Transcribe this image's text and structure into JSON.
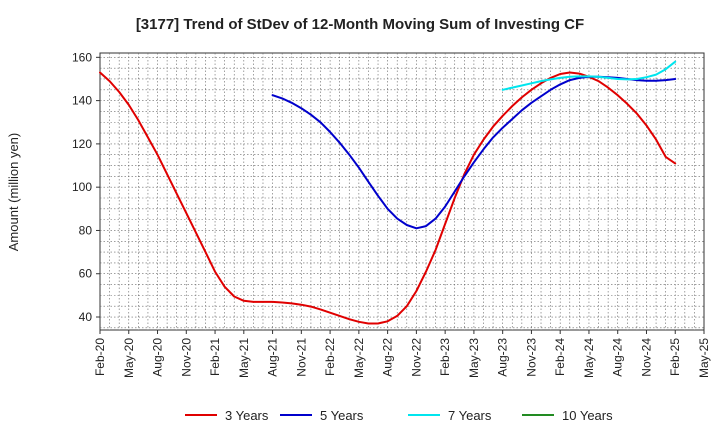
{
  "chart_data": {
    "type": "line",
    "title": "[3177]  Trend of StDev of 12-Month Moving Sum of Investing CF",
    "xlabel": "",
    "ylabel": "Amount (million yen)",
    "ylim": [
      34,
      162
    ],
    "yticks": [
      40,
      60,
      80,
      100,
      120,
      140,
      160
    ],
    "x_range": [
      "2020-02",
      "2025-05"
    ],
    "xtick_labels": [
      "Feb-20",
      "May-20",
      "Aug-20",
      "Nov-20",
      "Feb-21",
      "May-21",
      "Aug-21",
      "Nov-21",
      "Feb-22",
      "May-22",
      "Aug-22",
      "Nov-22",
      "Feb-23",
      "May-23",
      "Aug-23",
      "Nov-23",
      "Feb-24",
      "May-24",
      "Aug-24",
      "Nov-24",
      "Feb-25",
      "May-25"
    ],
    "grid": true,
    "legend_position": "bottom",
    "series": [
      {
        "name": "3 Years",
        "color": "#e00000",
        "points": [
          [
            "2020-02",
            153
          ],
          [
            "2020-03",
            149
          ],
          [
            "2020-04",
            144
          ],
          [
            "2020-05",
            138
          ],
          [
            "2020-06",
            131
          ],
          [
            "2020-07",
            123
          ],
          [
            "2020-08",
            115
          ],
          [
            "2020-09",
            106
          ],
          [
            "2020-10",
            97
          ],
          [
            "2020-11",
            88
          ],
          [
            "2020-12",
            79
          ],
          [
            "2021-01",
            70
          ],
          [
            "2021-02",
            61
          ],
          [
            "2021-03",
            54
          ],
          [
            "2021-04",
            49.5
          ],
          [
            "2021-05",
            47.5
          ],
          [
            "2021-06",
            47
          ],
          [
            "2021-07",
            47
          ],
          [
            "2021-08",
            47
          ],
          [
            "2021-09",
            46.7
          ],
          [
            "2021-10",
            46.3
          ],
          [
            "2021-11",
            45.7
          ],
          [
            "2021-12",
            44.8
          ],
          [
            "2022-01",
            43.5
          ],
          [
            "2022-02",
            42
          ],
          [
            "2022-03",
            40.5
          ],
          [
            "2022-04",
            39
          ],
          [
            "2022-05",
            37.8
          ],
          [
            "2022-06",
            37
          ],
          [
            "2022-07",
            37
          ],
          [
            "2022-08",
            38
          ],
          [
            "2022-09",
            40.5
          ],
          [
            "2022-10",
            45
          ],
          [
            "2022-11",
            52
          ],
          [
            "2022-12",
            61
          ],
          [
            "2023-01",
            71
          ],
          [
            "2023-02",
            83
          ],
          [
            "2023-03",
            95
          ],
          [
            "2023-04",
            106
          ],
          [
            "2023-05",
            115
          ],
          [
            "2023-06",
            122
          ],
          [
            "2023-07",
            128
          ],
          [
            "2023-08",
            133
          ],
          [
            "2023-09",
            137.5
          ],
          [
            "2023-10",
            141.5
          ],
          [
            "2023-11",
            145
          ],
          [
            "2023-12",
            148
          ],
          [
            "2024-01",
            150.5
          ],
          [
            "2024-02",
            152.3
          ],
          [
            "2024-03",
            153
          ],
          [
            "2024-04",
            152.5
          ],
          [
            "2024-05",
            151
          ],
          [
            "2024-06",
            149
          ],
          [
            "2024-07",
            146
          ],
          [
            "2024-08",
            142.5
          ],
          [
            "2024-09",
            138.5
          ],
          [
            "2024-10",
            134
          ],
          [
            "2024-11",
            128.5
          ],
          [
            "2024-12",
            122
          ],
          [
            "2025-01",
            114
          ],
          [
            "2025-02",
            111
          ]
        ]
      },
      {
        "name": "5 Years",
        "color": "#0000cc",
        "points": [
          [
            "2021-08",
            142.5
          ],
          [
            "2021-09",
            141
          ],
          [
            "2021-10",
            139
          ],
          [
            "2021-11",
            136.5
          ],
          [
            "2021-12",
            133.5
          ],
          [
            "2022-01",
            130
          ],
          [
            "2022-02",
            125.5
          ],
          [
            "2022-03",
            120.5
          ],
          [
            "2022-04",
            115
          ],
          [
            "2022-05",
            109
          ],
          [
            "2022-06",
            102.5
          ],
          [
            "2022-07",
            96
          ],
          [
            "2022-08",
            90
          ],
          [
            "2022-09",
            85.5
          ],
          [
            "2022-10",
            82.5
          ],
          [
            "2022-11",
            81
          ],
          [
            "2022-12",
            82
          ],
          [
            "2023-01",
            85.5
          ],
          [
            "2023-02",
            91
          ],
          [
            "2023-03",
            98
          ],
          [
            "2023-04",
            105
          ],
          [
            "2023-05",
            111.5
          ],
          [
            "2023-06",
            117.5
          ],
          [
            "2023-07",
            123
          ],
          [
            "2023-08",
            127.5
          ],
          [
            "2023-09",
            131.5
          ],
          [
            "2023-10",
            135.5
          ],
          [
            "2023-11",
            139
          ],
          [
            "2023-12",
            142
          ],
          [
            "2024-01",
            145
          ],
          [
            "2024-02",
            147.5
          ],
          [
            "2024-03",
            149.5
          ],
          [
            "2024-04",
            150.5
          ],
          [
            "2024-05",
            151
          ],
          [
            "2024-06",
            151
          ],
          [
            "2024-07",
            150.8
          ],
          [
            "2024-08",
            150.5
          ],
          [
            "2024-09",
            150
          ],
          [
            "2024-10",
            149.5
          ],
          [
            "2024-11",
            149.2
          ],
          [
            "2024-12",
            149.2
          ],
          [
            "2025-01",
            149.5
          ],
          [
            "2025-02",
            150
          ]
        ]
      },
      {
        "name": "7 Years",
        "color": "#00e5ee",
        "points": [
          [
            "2023-08",
            145
          ],
          [
            "2023-09",
            146
          ],
          [
            "2023-10",
            147
          ],
          [
            "2023-11",
            148
          ],
          [
            "2023-12",
            149
          ],
          [
            "2024-01",
            149.8
          ],
          [
            "2024-02",
            150.5
          ],
          [
            "2024-03",
            151
          ],
          [
            "2024-04",
            151.2
          ],
          [
            "2024-05",
            151.2
          ],
          [
            "2024-06",
            151
          ],
          [
            "2024-07",
            150.5
          ],
          [
            "2024-08",
            150
          ],
          [
            "2024-09",
            149.8
          ],
          [
            "2024-10",
            150
          ],
          [
            "2024-11",
            150.8
          ],
          [
            "2024-12",
            152
          ],
          [
            "2025-01",
            154.5
          ],
          [
            "2025-02",
            158
          ]
        ]
      },
      {
        "name": "10 Years",
        "color": "#228b22",
        "points": []
      }
    ]
  }
}
